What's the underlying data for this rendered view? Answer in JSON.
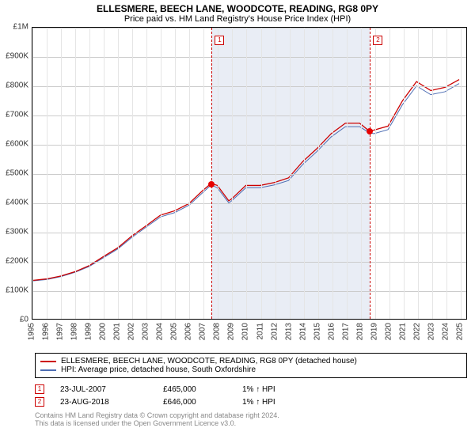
{
  "title": "ELLESMERE, BEECH LANE, WOODCOTE, READING, RG8 0PY",
  "subtitle": "Price paid vs. HM Land Registry's House Price Index (HPI)",
  "chart": {
    "type": "line",
    "ylim": [
      0,
      1000000
    ],
    "ytick_step": 100000,
    "yticks": [
      "£0",
      "£100K",
      "£200K",
      "£300K",
      "£400K",
      "£500K",
      "£600K",
      "£700K",
      "£800K",
      "£900K",
      "£1M"
    ],
    "xlim": [
      1995,
      2025.5
    ],
    "xticks": [
      1995,
      1996,
      1997,
      1998,
      1999,
      2000,
      2001,
      2002,
      2003,
      2004,
      2005,
      2006,
      2007,
      2008,
      2009,
      2010,
      2011,
      2012,
      2013,
      2014,
      2015,
      2016,
      2017,
      2018,
      2019,
      2020,
      2021,
      2022,
      2023,
      2024,
      2025
    ],
    "background_color": "#ffffff",
    "grid_color_h": "#cccccc",
    "grid_color_v": "#e5e5e5",
    "shade_color": "#e9edf5",
    "shade_start": 2007.56,
    "shade_end": 2018.65,
    "series": [
      {
        "name": "hpi",
        "color": "#4d6db3",
        "line_width": 1,
        "pts": [
          [
            1995,
            130000
          ],
          [
            1996,
            135000
          ],
          [
            1997,
            145000
          ],
          [
            1998,
            160000
          ],
          [
            1999,
            180000
          ],
          [
            2000,
            210000
          ],
          [
            2001,
            240000
          ],
          [
            2002,
            280000
          ],
          [
            2003,
            315000
          ],
          [
            2004,
            350000
          ],
          [
            2005,
            365000
          ],
          [
            2006,
            390000
          ],
          [
            2007,
            435000
          ],
          [
            2007.56,
            460000
          ],
          [
            2008,
            450000
          ],
          [
            2008.8,
            398000
          ],
          [
            2009,
            405000
          ],
          [
            2010,
            450000
          ],
          [
            2011,
            450000
          ],
          [
            2012,
            460000
          ],
          [
            2013,
            475000
          ],
          [
            2014,
            530000
          ],
          [
            2015,
            575000
          ],
          [
            2016,
            625000
          ],
          [
            2017,
            660000
          ],
          [
            2018,
            660000
          ],
          [
            2018.65,
            640000
          ],
          [
            2019,
            636000
          ],
          [
            2020,
            650000
          ],
          [
            2021,
            735000
          ],
          [
            2022,
            800000
          ],
          [
            2023,
            770000
          ],
          [
            2024,
            780000
          ],
          [
            2025,
            808000
          ]
        ]
      },
      {
        "name": "property",
        "color": "#cc0000",
        "line_width": 1.3,
        "pts": [
          [
            1995,
            132000
          ],
          [
            1996,
            137000
          ],
          [
            1997,
            147000
          ],
          [
            1998,
            162000
          ],
          [
            1999,
            183000
          ],
          [
            2000,
            214000
          ],
          [
            2001,
            244000
          ],
          [
            2002,
            285000
          ],
          [
            2003,
            320000
          ],
          [
            2004,
            356000
          ],
          [
            2005,
            371000
          ],
          [
            2006,
            396000
          ],
          [
            2007,
            442000
          ],
          [
            2007.56,
            465000
          ],
          [
            2008,
            458000
          ],
          [
            2008.8,
            405000
          ],
          [
            2009,
            412000
          ],
          [
            2010,
            458000
          ],
          [
            2011,
            458000
          ],
          [
            2012,
            468000
          ],
          [
            2013,
            484000
          ],
          [
            2014,
            540000
          ],
          [
            2015,
            585000
          ],
          [
            2016,
            636000
          ],
          [
            2017,
            672000
          ],
          [
            2018,
            672000
          ],
          [
            2018.65,
            646000
          ],
          [
            2019,
            648000
          ],
          [
            2020,
            662000
          ],
          [
            2021,
            748000
          ],
          [
            2022,
            815000
          ],
          [
            2023,
            784000
          ],
          [
            2024,
            795000
          ],
          [
            2025,
            822000
          ]
        ]
      }
    ],
    "markers": [
      {
        "n": "1",
        "x": 2007.56,
        "y": 465000,
        "dot_color": "#e60000",
        "box_color": "#cc0000"
      },
      {
        "n": "2",
        "x": 2018.65,
        "y": 646000,
        "dot_color": "#e60000",
        "box_color": "#cc0000"
      }
    ]
  },
  "legend": {
    "border_color": "#000000",
    "items": [
      {
        "color": "#cc0000",
        "label": "ELLESMERE, BEECH LANE, WOODCOTE, READING, RG8 0PY (detached house)"
      },
      {
        "color": "#4d6db3",
        "label": "HPI: Average price, detached house, South Oxfordshire"
      }
    ]
  },
  "sales": [
    {
      "n": "1",
      "box_color": "#cc0000",
      "date": "23-JUL-2007",
      "price": "£465,000",
      "diff": "1% ↑ HPI"
    },
    {
      "n": "2",
      "box_color": "#cc0000",
      "date": "23-AUG-2018",
      "price": "£646,000",
      "diff": "1% ↑ HPI"
    }
  ],
  "footer_line1": "Contains HM Land Registry data © Crown copyright and database right 2024.",
  "footer_line2": "This data is licensed under the Open Government Licence v3.0."
}
